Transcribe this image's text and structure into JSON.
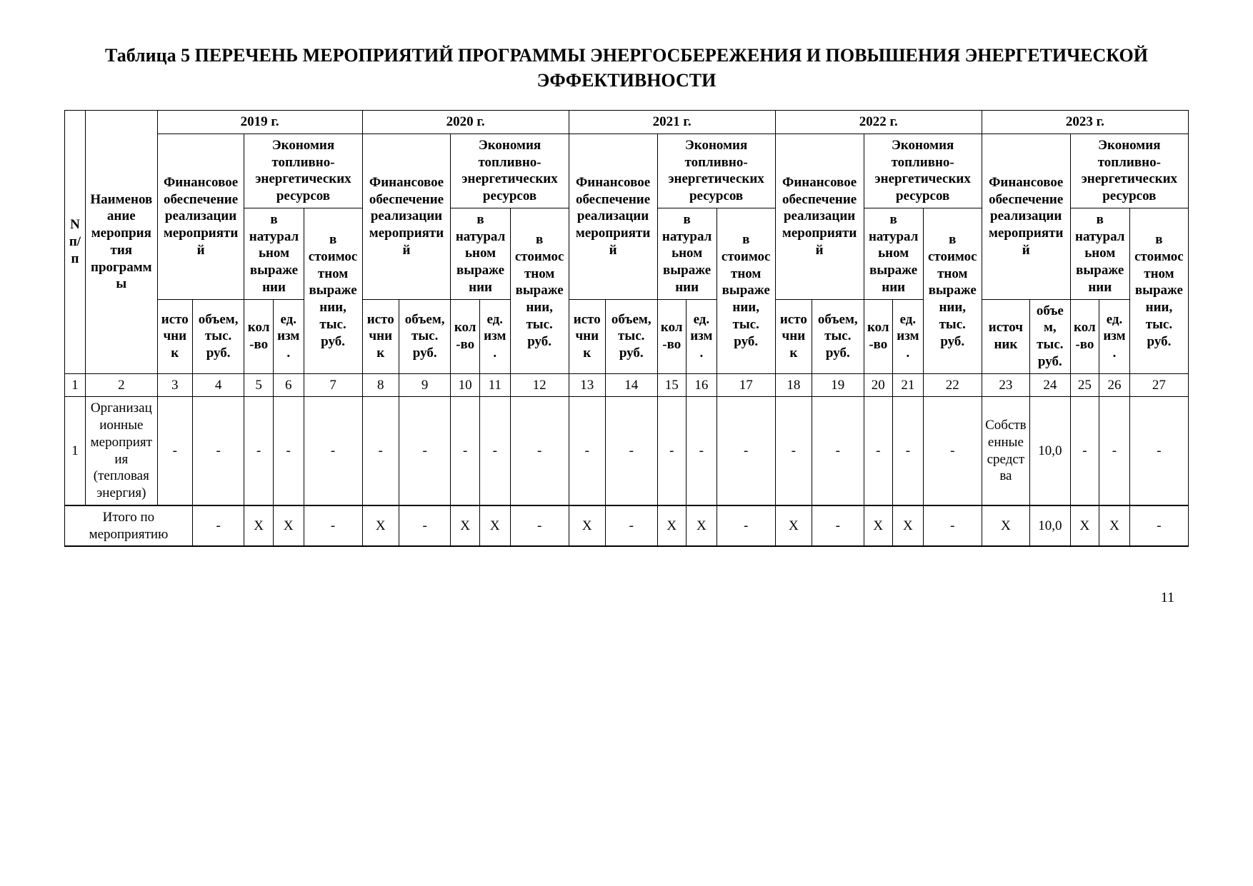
{
  "title": "Таблица 5 ПЕРЕЧЕНЬ МЕРОПРИЯТИЙ ПРОГРАММЫ ЭНЕРГОСБЕРЕЖЕНИЯ И ПОВЫШЕНИЯ ЭНЕРГЕТИЧЕСКОЙ ЭФФЕКТИВНОСТИ",
  "page_number": "11",
  "header": {
    "col_n": "N п/п",
    "col_name": "Наименование мероприятия программы",
    "years": [
      "2019 г.",
      "2020 г.",
      "2021 г.",
      "2022 г.",
      "2023 г."
    ],
    "fin": [
      "Финансовое обеспечение реализации мероприятий",
      "Финансовое обеспечение реализации мероприятий",
      "Финансовое обеспечение реализации мероприятий",
      "Финансовое обеспечение реализации мероприятий",
      "Финансовое обеспечение реализации мероприятий"
    ],
    "econ": "Экономия топливно-энергетических ресурсов",
    "nat": "в натуральном выражении",
    "cost": "в стоимостном выражении, тыс. руб.",
    "src": "источник",
    "vol": "объем, тыс. руб.",
    "qty": "кол-во",
    "unit": "ед. изм."
  },
  "num_row": [
    "1",
    "2",
    "3",
    "4",
    "5",
    "6",
    "7",
    "8",
    "9",
    "10",
    "11",
    "12",
    "13",
    "14",
    "15",
    "16",
    "17",
    "18",
    "19",
    "20",
    "21",
    "22",
    "23",
    "24",
    "25",
    "26",
    "27"
  ],
  "data_row": {
    "n": "1",
    "name": "Организационные мероприятия (тепловая энергия)",
    "cells": [
      "-",
      "-",
      "-",
      "-",
      "-",
      "-",
      "-",
      "-",
      "-",
      "-",
      "-",
      "-",
      "-",
      "-",
      "-",
      "-",
      "-",
      "-",
      "-",
      "-",
      "Собственные средства",
      "10,0",
      "-",
      "-",
      "-"
    ]
  },
  "total_row": {
    "label": "Итого по мероприятию",
    "cells": [
      "-",
      "X",
      "X",
      "-",
      "X",
      "-",
      "X",
      "X",
      "-",
      "X",
      "-",
      "X",
      "X",
      "-",
      "X",
      "-",
      "X",
      "X",
      "-",
      "X",
      "10,0",
      "X",
      "X",
      "-"
    ]
  }
}
